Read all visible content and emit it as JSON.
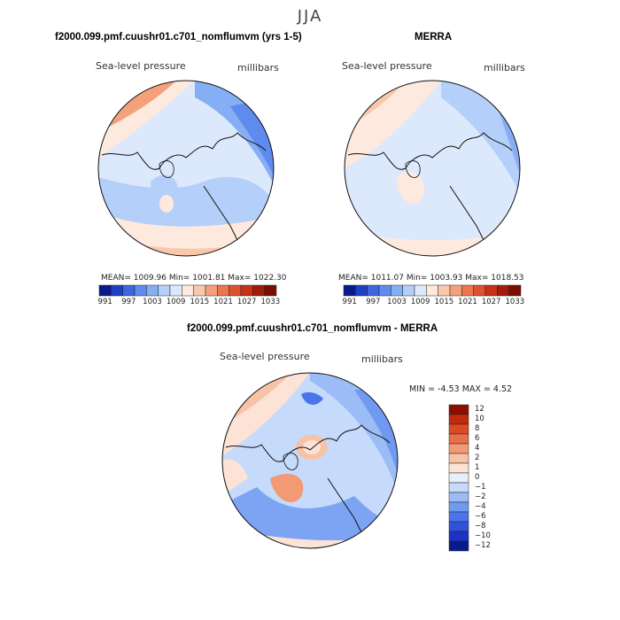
{
  "season": "JJA",
  "panels": {
    "model": {
      "title": "f2000.099.pmf.cuushr01.c701_nomflumvm (yrs 1-5)",
      "field": "Sea-level pressure",
      "units": "millibars",
      "stats": "MEAN= 1009.96   Min= 1001.81   Max= 1022.30"
    },
    "obs": {
      "title": "MERRA",
      "field": "Sea-level pressure",
      "units": "millibars",
      "stats": "MEAN= 1011.07   Min= 1003.93   Max= 1018.53"
    },
    "diff": {
      "title": "f2000.099.pmf.cuushr01.c701_nomflumvm - MERRA",
      "field": "Sea-level pressure",
      "units": "millibars",
      "minmax": "MIN =   -4.53  MAX =    4.52"
    }
  },
  "colors": {
    "abs_scale": [
      "#0a1a8c",
      "#1f3fc8",
      "#3d66e0",
      "#5f8aee",
      "#86aef4",
      "#b4cff9",
      "#dce9fc",
      "#fde9dd",
      "#f9c8ab",
      "#f4a07a",
      "#ec7650",
      "#e0502d",
      "#c83018",
      "#a31c0a",
      "#7a0e02"
    ],
    "diff_scale": [
      "#0a1a8c",
      "#1a33c4",
      "#2f52dd",
      "#4a74ea",
      "#7099f1",
      "#9bbcf6",
      "#c6dafb",
      "#e6f0fd",
      "#fce3d6",
      "#f7c2a6",
      "#f19a74",
      "#e86f47",
      "#d94a25",
      "#c02a0f",
      "#8a0f02"
    ]
  },
  "chart_data": [
    {
      "type": "heatmap",
      "title": "f2000.099.pmf.cuushr01.c701_nomflumvm (yrs 1-5)",
      "subtitle": "Sea-level pressure",
      "units": "millibars",
      "projection": "north polar stereographic",
      "mean": 1009.96,
      "min": 1001.81,
      "max": 1022.3,
      "colorbar_levels": [
        991,
        994,
        997,
        1000,
        1003,
        1006,
        1009,
        1012,
        1015,
        1018,
        1021,
        1024,
        1027,
        1030,
        1033
      ],
      "colorbar_tick_labels": [
        "991",
        "997",
        "1003",
        "1009",
        "1015",
        "1021",
        "1027",
        "1033"
      ]
    },
    {
      "type": "heatmap",
      "title": "MERRA",
      "subtitle": "Sea-level pressure",
      "units": "millibars",
      "projection": "north polar stereographic",
      "mean": 1011.07,
      "min": 1003.93,
      "max": 1018.53,
      "colorbar_levels": [
        991,
        994,
        997,
        1000,
        1003,
        1006,
        1009,
        1012,
        1015,
        1018,
        1021,
        1024,
        1027,
        1030,
        1033
      ],
      "colorbar_tick_labels": [
        "991",
        "997",
        "1003",
        "1009",
        "1015",
        "1021",
        "1027",
        "1033"
      ]
    },
    {
      "type": "heatmap",
      "title": "f2000.099.pmf.cuushr01.c701_nomflumvm - MERRA",
      "subtitle": "Sea-level pressure",
      "units": "millibars",
      "projection": "north polar stereographic",
      "min": -4.53,
      "max": 4.52,
      "colorbar_levels": [
        -12,
        -10,
        -8,
        -6,
        -4,
        -2,
        -1,
        0,
        1,
        2,
        4,
        6,
        8,
        10,
        12
      ],
      "colorbar_tick_labels": [
        "12",
        "10",
        "8",
        "6",
        "4",
        "2",
        "1",
        "0",
        "−1",
        "−2",
        "−4",
        "−6",
        "−8",
        "−10",
        "−12"
      ]
    }
  ]
}
